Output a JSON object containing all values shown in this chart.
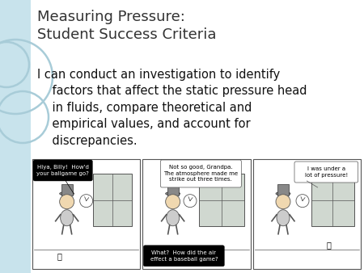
{
  "title_line1": "Measuring Pressure:",
  "title_line2": "Student Success Criteria",
  "body_text_lines": [
    "I can conduct an investigation to identify",
    "    factors that affect the static pressure head",
    "    in fluids, compare theoretical and",
    "    empirical values, and account for",
    "    discrepancies."
  ],
  "background_color": "#ffffff",
  "left_strip_color": "#c8e3ec",
  "title_color": "#333333",
  "body_color": "#111111",
  "title_fontsize": 13,
  "body_fontsize": 10.5,
  "panel1_bubble1_text": "Hiya, Billy!  How'd\nyour ballgame go?",
  "panel2_bubble1_text": "Not so good, Grandpa.\nThe atmosphere made me\nstrike out three times.",
  "panel2_bubble2_text": "What?  How did the air\neffect a baseball game?",
  "panel3_bubble1_text": "I was under a\nlot of pressure!"
}
